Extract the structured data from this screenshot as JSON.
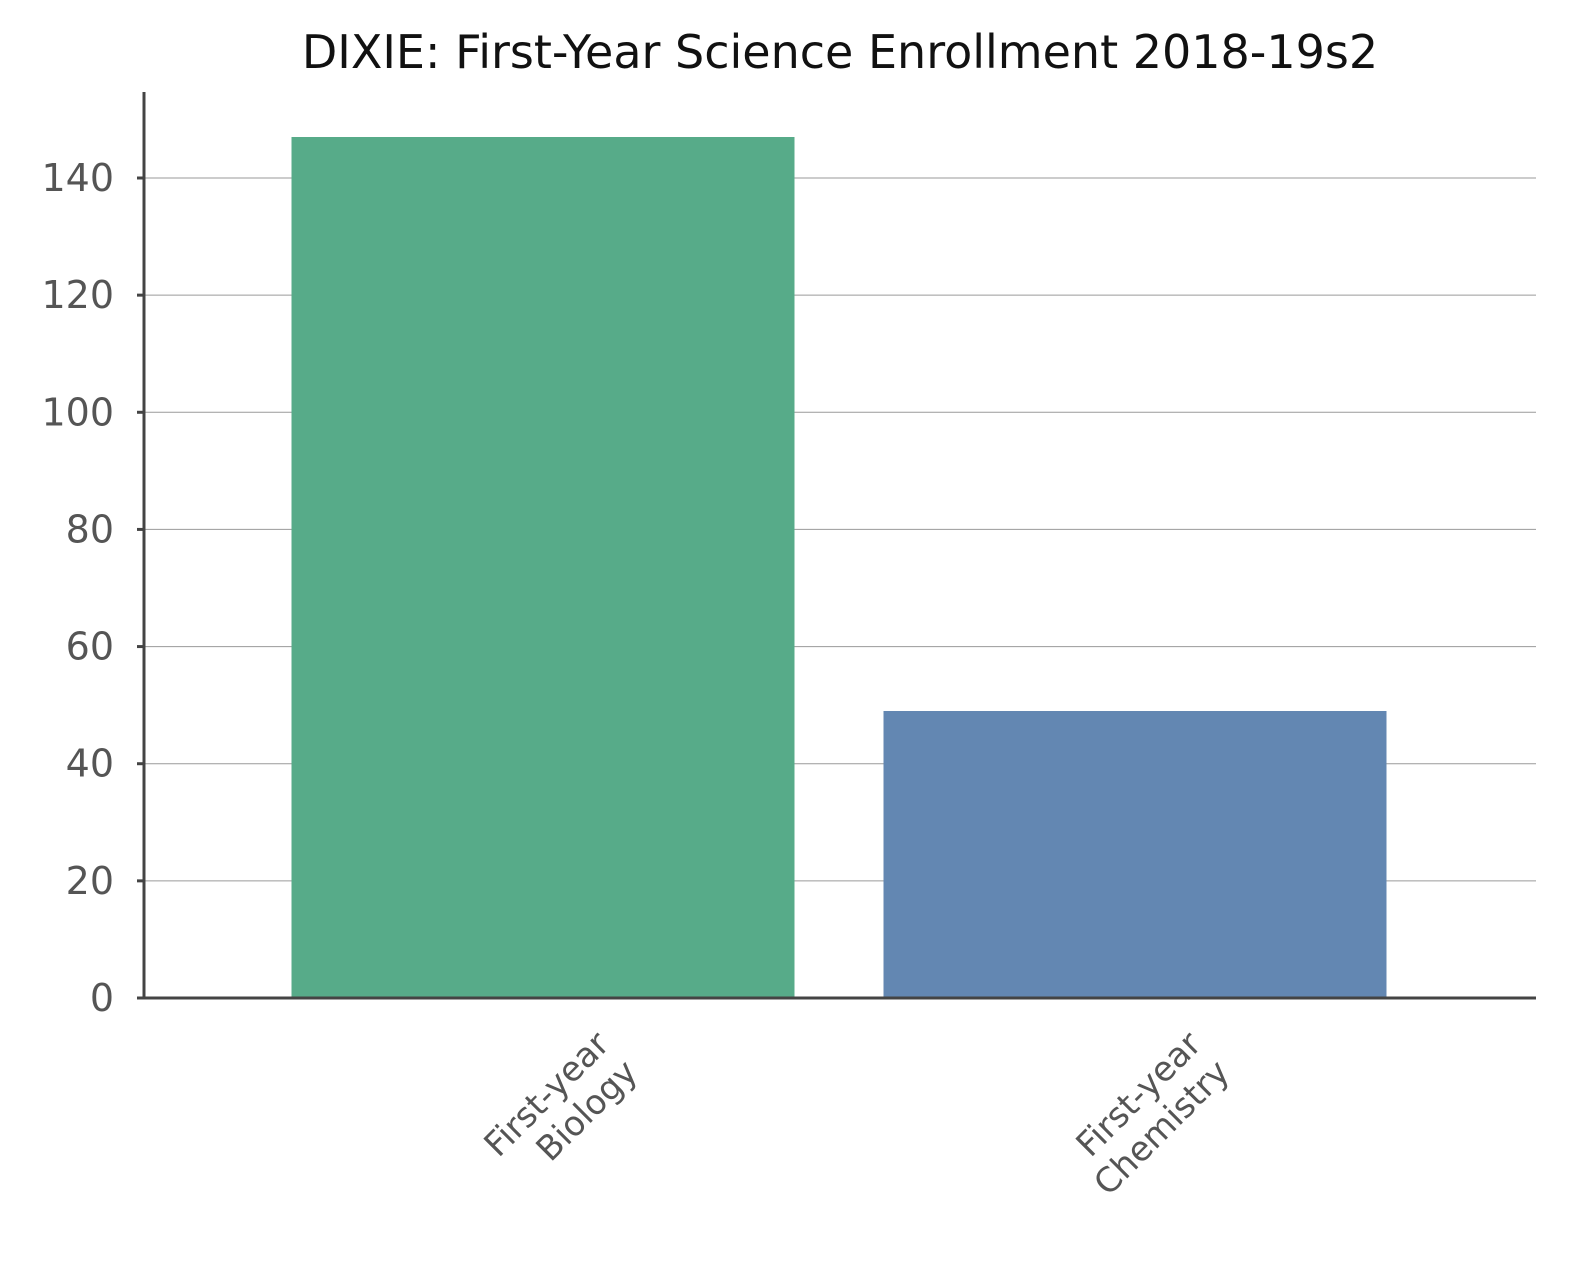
{
  "chart_data": {
    "type": "bar",
    "title": "DIXIE: First-Year Science Enrollment 2018-19s2",
    "xlabel": "",
    "ylabel": "",
    "categories": [
      "First-year Biology",
      "First-year Chemistry"
    ],
    "category_label_lines": [
      [
        "First-year",
        "Biology"
      ],
      [
        "First-year",
        "Chemistry"
      ]
    ],
    "values": [
      147,
      49
    ],
    "colors": [
      "#57ab89",
      "#6387b2"
    ],
    "ylim": [
      0,
      154
    ],
    "yticks": [
      0,
      20,
      40,
      60,
      80,
      100,
      120,
      140
    ],
    "grid": true,
    "legend": "none"
  }
}
